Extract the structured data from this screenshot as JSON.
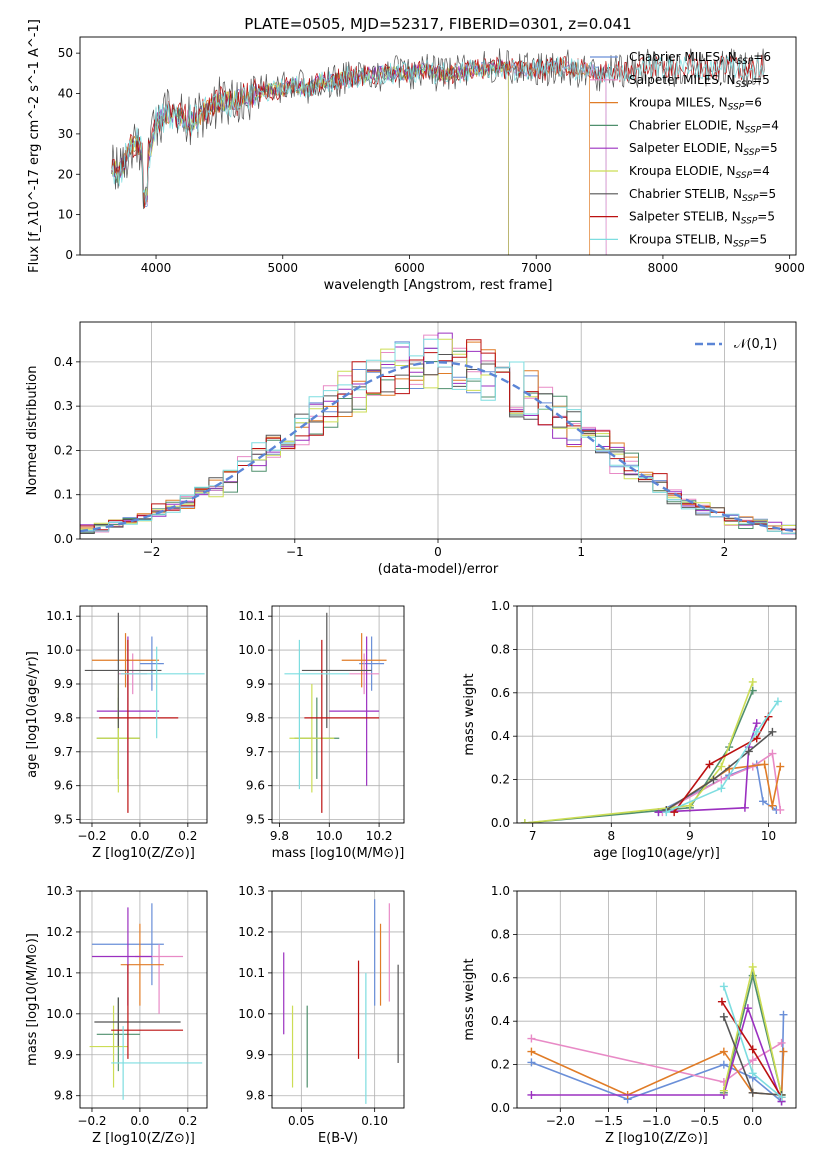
{
  "figure": {
    "title": "PLATE=0505, MJD=52317, FIBERID=0301, z=0.041"
  },
  "colors": {
    "series": [
      "#6a8fd8",
      "#e88ac6",
      "#e07c27",
      "#4f8f6d",
      "#9b30c0",
      "#ccdd55",
      "#555555",
      "#bb1111",
      "#7ddde0"
    ],
    "normal": "#5b85d6",
    "grid": "#b0b0b0"
  },
  "chart_data": [
    {
      "id": "spectrum",
      "type": "line",
      "title": "PLATE=0505, MJD=52317, FIBERID=0301, z=0.041",
      "xlabel": "wavelength [Angstrom, rest frame]",
      "ylabel": "Flux [f_λ10^-17 erg cm^-2 s^-1 A^-1]",
      "xlim": [
        3400,
        9050
      ],
      "ylim": [
        0,
        54
      ],
      "xticks": [
        4000,
        5000,
        6000,
        7000,
        8000,
        9000
      ],
      "yticks": [
        0,
        10,
        20,
        30,
        40,
        50
      ],
      "grid": false,
      "legend_position": "right",
      "x": [
        3650,
        3700,
        3750,
        3800,
        3850,
        3900,
        3950,
        4000,
        4100,
        4200,
        4300,
        4400,
        4500,
        4600,
        4700,
        4800,
        4900,
        5000,
        5100,
        5200,
        5300,
        5400,
        5500,
        5600,
        5700,
        5800,
        5900,
        6000,
        6100,
        6200,
        6300,
        6400,
        6500,
        6600,
        6700,
        6800,
        6900,
        7000,
        7100,
        7200,
        7300,
        7400,
        7500,
        7600,
        7700,
        7800,
        7900,
        8000,
        8100,
        8200,
        8300,
        8400,
        8500,
        8600,
        8700,
        8800
      ],
      "y": [
        22,
        20,
        23,
        27,
        28,
        24,
        25,
        33,
        35,
        34,
        33,
        36,
        38,
        38,
        39,
        40,
        41,
        41,
        42,
        41,
        43,
        43,
        44,
        44,
        45,
        45,
        45,
        45,
        46,
        45,
        45,
        45,
        46,
        46,
        47,
        46,
        46,
        46,
        46,
        47,
        46,
        46,
        45,
        46,
        45,
        46,
        47,
        46,
        46,
        47,
        46,
        46,
        47,
        46,
        46,
        47
      ],
      "series": [
        {
          "name": "Chabrier MILES, N_SSP=6",
          "end": 7550
        },
        {
          "name": "Salpeter MILES, N_SSP=5",
          "end": 7550
        },
        {
          "name": "Kroupa MILES, N_SSP=6",
          "end": 7420
        },
        {
          "name": "Chabrier ELODIE, N_SSP=4",
          "end": 6780
        },
        {
          "name": "Salpeter ELODIE, N_SSP=5",
          "end": 6780
        },
        {
          "name": "Kroupa ELODIE, N_SSP=4",
          "end": 6780
        },
        {
          "name": "Chabrier STELIB, N_SSP=5",
          "end": 8800
        },
        {
          "name": "Salpeter STELIB, N_SSP=5",
          "end": 8800
        },
        {
          "name": "Kroupa STELIB, N_SSP=5",
          "end": 8800
        }
      ],
      "legend": [
        {
          "model": "Chabrier MILES, N",
          "sub": "SSP",
          "suffix": "=6"
        },
        {
          "model": "Salpeter MILES, N",
          "sub": "SSP",
          "suffix": "=5"
        },
        {
          "model": "Kroupa MILES, N",
          "sub": "SSP",
          "suffix": "=6"
        },
        {
          "model": "Chabrier ELODIE, N",
          "sub": "SSP",
          "suffix": "=4"
        },
        {
          "model": "Salpeter ELODIE, N",
          "sub": "SSP",
          "suffix": "=5"
        },
        {
          "model": "Kroupa ELODIE, N",
          "sub": "SSP",
          "suffix": "=4"
        },
        {
          "model": "Chabrier STELIB, N",
          "sub": "SSP",
          "suffix": "=5"
        },
        {
          "model": "Salpeter STELIB, N",
          "sub": "SSP",
          "suffix": "=5"
        },
        {
          "model": "Kroupa STELIB, N",
          "sub": "SSP",
          "suffix": "=5"
        }
      ]
    },
    {
      "id": "residuals",
      "type": "histogram",
      "xlabel": "(data-model)/error",
      "ylabel": "Normed distribution",
      "xlim": [
        -2.5,
        2.5
      ],
      "ylim": [
        0,
        0.49
      ],
      "xticks": [
        -2,
        -1,
        0,
        1,
        2
      ],
      "yticks": [
        0.0,
        0.1,
        0.2,
        0.3,
        0.4
      ],
      "grid": true,
      "legend": "𝒩(0,1)",
      "legend_position": "top-right",
      "bin_width": 0.1
    },
    {
      "id": "age-vs-Z",
      "type": "errorbar",
      "xlabel": "Z [log10(Z/Z⊙)]",
      "ylabel": "age [log10(age/yr)]",
      "xlim": [
        -0.25,
        0.28
      ],
      "ylim": [
        9.49,
        10.13
      ],
      "xticks": [
        -0.2,
        0.0,
        0.2
      ],
      "yticks": [
        9.5,
        9.6,
        9.7,
        9.8,
        9.9,
        10.0,
        10.1
      ],
      "grid": true,
      "points": [
        {
          "x": 0.05,
          "y": 9.96,
          "xerr": [
            0.05,
            0.05
          ],
          "yerr": [
            0.08,
            0.08
          ]
        },
        {
          "x": -0.03,
          "y": 9.93,
          "xerr": [
            0.06,
            0.06
          ],
          "yerr": [
            0.06,
            0.06
          ]
        },
        {
          "x": -0.06,
          "y": 9.97,
          "xerr": [
            0.14,
            0.14
          ],
          "yerr": [
            0.08,
            0.08
          ]
        },
        {
          "x": -0.09,
          "y": 9.74,
          "xerr": [
            0.09,
            0.09
          ],
          "yerr": [
            0.12,
            0.12
          ]
        },
        {
          "x": -0.05,
          "y": 9.82,
          "xerr": [
            0.13,
            0.13
          ],
          "yerr": [
            0.22,
            0.22
          ]
        },
        {
          "x": -0.09,
          "y": 9.74,
          "xerr": [
            0.09,
            0.09
          ],
          "yerr": [
            0.16,
            0.16
          ]
        },
        {
          "x": -0.09,
          "y": 9.94,
          "xerr": [
            0.14,
            0.18
          ],
          "yerr": [
            0.17,
            0.17
          ]
        },
        {
          "x": -0.05,
          "y": 9.8,
          "xerr": [
            0.12,
            0.21
          ],
          "yerr": [
            0.28,
            0.23
          ]
        },
        {
          "x": 0.07,
          "y": 9.93,
          "xerr": [
            0.15,
            0.2
          ],
          "yerr": [
            0.19,
            0.08
          ]
        }
      ]
    },
    {
      "id": "age-vs-mass",
      "type": "errorbar",
      "xlabel": "mass [log10(M/M⊙)]",
      "ylabel": "",
      "xlim": [
        9.77,
        10.3
      ],
      "ylim": [
        9.49,
        10.13
      ],
      "xticks": [
        9.8,
        10.0,
        10.2
      ],
      "yticks": [
        9.5,
        9.6,
        9.7,
        9.8,
        9.9,
        10.0,
        10.1
      ],
      "grid": true,
      "points": [
        {
          "x": 10.17,
          "y": 9.96,
          "xerr": [
            0.05,
            0.05
          ],
          "yerr": [
            0.08,
            0.08
          ]
        },
        {
          "x": 10.14,
          "y": 9.93,
          "xerr": [
            0.06,
            0.06
          ],
          "yerr": [
            0.06,
            0.06
          ]
        },
        {
          "x": 10.13,
          "y": 9.97,
          "xerr": [
            0.08,
            0.1
          ],
          "yerr": [
            0.08,
            0.08
          ]
        },
        {
          "x": 9.95,
          "y": 9.74,
          "xerr": [
            0.09,
            0.09
          ],
          "yerr": [
            0.12,
            0.12
          ]
        },
        {
          "x": 10.15,
          "y": 9.82,
          "xerr": [
            0.15,
            0.05
          ],
          "yerr": [
            0.22,
            0.22
          ]
        },
        {
          "x": 9.93,
          "y": 9.74,
          "xerr": [
            0.09,
            0.09
          ],
          "yerr": [
            0.16,
            0.16
          ]
        },
        {
          "x": 9.99,
          "y": 9.94,
          "xerr": [
            0.1,
            0.18
          ],
          "yerr": [
            0.17,
            0.17
          ]
        },
        {
          "x": 9.97,
          "y": 9.8,
          "xerr": [
            0.07,
            0.23
          ],
          "yerr": [
            0.28,
            0.23
          ]
        },
        {
          "x": 9.88,
          "y": 9.93,
          "xerr": [
            0.06,
            0.2
          ],
          "yerr": [
            0.34,
            0.1
          ]
        }
      ]
    },
    {
      "id": "mass-weight-vs-age",
      "type": "line",
      "xlabel": "age [log10(age/yr)]",
      "ylabel": "mass weight",
      "xlim": [
        6.8,
        10.35
      ],
      "ylim": [
        0,
        1.0
      ],
      "xticks": [
        7,
        8,
        9,
        10
      ],
      "yticks": [
        0.0,
        0.2,
        0.4,
        0.6,
        0.8,
        1.0
      ],
      "grid": true,
      "series": [
        {
          "x": [
            8.6,
            9.5,
            9.85,
            9.93,
            10.1
          ],
          "y": [
            0.05,
            0.22,
            0.27,
            0.1,
            0.06
          ]
        },
        {
          "x": [
            8.65,
            9.4,
            9.8,
            10.05,
            10.15
          ],
          "y": [
            0.05,
            0.2,
            0.26,
            0.32,
            0.06
          ]
        },
        {
          "x": [
            8.7,
            9.5,
            9.95,
            10.05,
            10.15
          ],
          "y": [
            0.06,
            0.25,
            0.27,
            0.08,
            0.26
          ]
        },
        {
          "x": [
            6.9,
            9.0,
            9.5,
            9.8
          ],
          "y": [
            0.0,
            0.07,
            0.35,
            0.61
          ]
        },
        {
          "x": [
            8.6,
            9.7,
            9.75,
            9.85
          ],
          "y": [
            0.05,
            0.07,
            0.35,
            0.46
          ]
        },
        {
          "x": [
            6.9,
            9.0,
            9.4,
            9.8
          ],
          "y": [
            0.0,
            0.08,
            0.26,
            0.65
          ]
        },
        {
          "x": [
            8.7,
            9.3,
            9.75,
            10.05
          ],
          "y": [
            0.06,
            0.2,
            0.33,
            0.42
          ]
        },
        {
          "x": [
            8.8,
            9.25,
            9.85,
            10.0
          ],
          "y": [
            0.05,
            0.27,
            0.39,
            0.49
          ]
        },
        {
          "x": [
            8.7,
            9.4,
            9.85,
            10.12
          ],
          "y": [
            0.05,
            0.16,
            0.42,
            0.56
          ]
        }
      ]
    },
    {
      "id": "mass-vs-Z",
      "type": "errorbar",
      "xlabel": "Z [log10(Z/Z⊙)]",
      "ylabel": "mass [log10(M/M⊙)]",
      "xlim": [
        -0.25,
        0.28
      ],
      "ylim": [
        9.77,
        10.3
      ],
      "xticks": [
        -0.2,
        0.0,
        0.2
      ],
      "yticks": [
        9.8,
        9.9,
        10.0,
        10.1,
        10.2,
        10.3
      ],
      "grid": true,
      "points": [
        {
          "x": 0.05,
          "y": 10.17,
          "xerr": [
            0.25,
            0.05
          ],
          "yerr": [
            0.1,
            0.1
          ]
        },
        {
          "x": 0.08,
          "y": 10.14,
          "xerr": [
            0.1,
            0.1
          ],
          "yerr": [
            0.14,
            0.03
          ]
        },
        {
          "x": 0.0,
          "y": 10.12,
          "xerr": [
            0.08,
            0.1
          ],
          "yerr": [
            0.1,
            0.1
          ]
        },
        {
          "x": -0.09,
          "y": 9.95,
          "xerr": [
            0.09,
            0.09
          ],
          "yerr": [
            0.09,
            0.09
          ]
        },
        {
          "x": -0.05,
          "y": 10.14,
          "xerr": [
            0.15,
            0.1
          ],
          "yerr": [
            0.12,
            0.12
          ]
        },
        {
          "x": -0.11,
          "y": 9.92,
          "xerr": [
            0.1,
            0.06
          ],
          "yerr": [
            0.1,
            0.1
          ]
        },
        {
          "x": -0.09,
          "y": 9.98,
          "xerr": [
            0.1,
            0.26
          ],
          "yerr": [
            0.06,
            0.06
          ]
        },
        {
          "x": -0.05,
          "y": 9.96,
          "xerr": [
            0.07,
            0.23
          ],
          "yerr": [
            0.07,
            0.16
          ]
        },
        {
          "x": -0.07,
          "y": 9.88,
          "xerr": [
            0.05,
            0.33
          ],
          "yerr": [
            0.09,
            0.09
          ]
        }
      ]
    },
    {
      "id": "mass-vs-EBV",
      "type": "errorbar",
      "xlabel": "E(B-V)",
      "ylabel": "",
      "xlim": [
        0.03,
        0.12
      ],
      "ylim": [
        9.77,
        10.3
      ],
      "xticks": [
        0.05,
        0.1
      ],
      "yticks": [
        9.8,
        9.9,
        10.0,
        10.1,
        10.2,
        10.3
      ],
      "grid": true,
      "points": [
        {
          "x": 0.1,
          "y": 10.15,
          "xerr": [
            0,
            0
          ],
          "yerr": [
            0.13,
            0.13
          ]
        },
        {
          "x": 0.11,
          "y": 10.15,
          "xerr": [
            0,
            0
          ],
          "yerr": [
            0.12,
            0.12
          ]
        },
        {
          "x": 0.104,
          "y": 10.12,
          "xerr": [
            0,
            0
          ],
          "yerr": [
            0.1,
            0.1
          ]
        },
        {
          "x": 0.054,
          "y": 9.92,
          "xerr": [
            0,
            0
          ],
          "yerr": [
            0.1,
            0.1
          ]
        },
        {
          "x": 0.038,
          "y": 10.05,
          "xerr": [
            0,
            0
          ],
          "yerr": [
            0.1,
            0.1
          ]
        },
        {
          "x": 0.044,
          "y": 9.92,
          "xerr": [
            0,
            0
          ],
          "yerr": [
            0.1,
            0.1
          ]
        },
        {
          "x": 0.116,
          "y": 10.0,
          "xerr": [
            0,
            0
          ],
          "yerr": [
            0.12,
            0.12
          ]
        },
        {
          "x": 0.089,
          "y": 10.01,
          "xerr": [
            0,
            0
          ],
          "yerr": [
            0.12,
            0.12
          ]
        },
        {
          "x": 0.094,
          "y": 9.94,
          "xerr": [
            0,
            0
          ],
          "yerr": [
            0.16,
            0.16
          ]
        }
      ]
    },
    {
      "id": "mass-weight-vs-Z",
      "type": "line",
      "xlabel": "Z [log10(Z/Z⊙)]",
      "ylabel": "mass weight",
      "xlim": [
        -2.45,
        0.45
      ],
      "ylim": [
        0,
        1.0
      ],
      "xticks": [
        -2.0,
        -1.5,
        -1.0,
        -0.5,
        0.0
      ],
      "yticks": [
        0.0,
        0.2,
        0.4,
        0.6,
        0.8,
        1.0
      ],
      "grid": true,
      "series": [
        {
          "x": [
            -2.3,
            -1.3,
            -0.3,
            0.0,
            0.3,
            0.32
          ],
          "y": [
            0.21,
            0.04,
            0.2,
            0.14,
            0.03,
            0.43
          ]
        },
        {
          "x": [
            -2.3,
            -0.3,
            0.0,
            0.3
          ],
          "y": [
            0.32,
            0.12,
            0.22,
            0.3
          ]
        },
        {
          "x": [
            -2.3,
            -1.3,
            -0.3,
            0.0,
            0.3,
            0.32
          ],
          "y": [
            0.26,
            0.06,
            0.26,
            0.07,
            0.06,
            0.26
          ]
        },
        {
          "x": [
            -0.3,
            0.0,
            0.3
          ],
          "y": [
            0.07,
            0.61,
            0.06
          ]
        },
        {
          "x": [
            -2.3,
            -0.3,
            -0.05,
            0.3
          ],
          "y": [
            0.06,
            0.06,
            0.46,
            0.03
          ]
        },
        {
          "x": [
            -0.3,
            0.0,
            0.3
          ],
          "y": [
            0.08,
            0.65,
            0.06
          ]
        },
        {
          "x": [
            -0.3,
            0.0,
            0.3
          ],
          "y": [
            0.42,
            0.07,
            0.06
          ]
        },
        {
          "x": [
            -0.32,
            0.0,
            0.3
          ],
          "y": [
            0.49,
            0.27,
            0.05
          ]
        },
        {
          "x": [
            -0.3,
            0.0,
            0.3
          ],
          "y": [
            0.56,
            0.16,
            0.05
          ]
        }
      ]
    }
  ]
}
